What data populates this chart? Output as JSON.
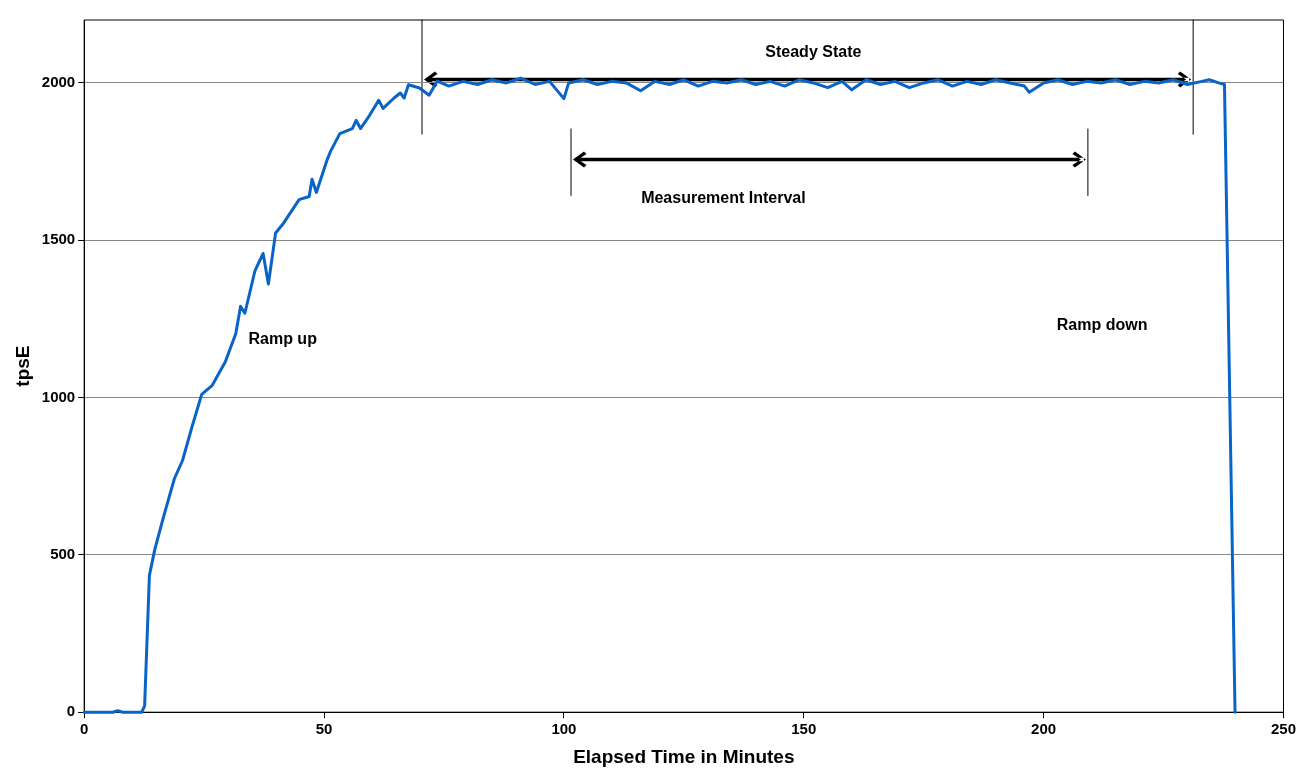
{
  "chart_data": {
    "type": "line",
    "xlabel": "Elapsed Time in Minutes",
    "ylabel": "tpsE",
    "series": [
      {
        "color": "#0a64c8",
        "x": [
          0,
          6,
          7,
          8,
          12,
          12.6,
          13.6,
          14.7,
          16.4,
          18.8,
          20.5,
          22.4,
          24.5,
          26.7,
          29.4,
          31.6,
          32.6,
          33.5,
          35.6,
          37.3,
          38.4,
          39.9,
          41.6,
          44.8,
          46.9,
          47.5,
          48.4,
          50.7,
          51.4,
          53.3,
          55.9,
          56.7,
          57.6,
          59.5,
          61.4,
          62.3,
          64.6,
          65.9,
          66.7,
          67.6,
          69.9,
          71.9,
          73.6,
          76,
          79,
          82,
          85,
          88,
          91,
          94,
          97,
          100,
          101,
          104,
          107,
          110,
          113,
          116,
          119,
          122,
          125,
          128,
          131,
          134,
          137,
          140,
          143,
          146,
          149,
          152,
          155,
          158,
          160,
          163,
          166,
          169,
          172,
          175,
          178,
          181,
          184,
          187,
          190,
          193,
          196,
          197,
          200,
          203,
          206,
          209,
          212,
          215,
          218,
          221,
          224,
          227,
          230,
          233,
          234.5,
          236.5,
          237.7,
          238.8,
          239.9
        ],
        "values": [
          0,
          0,
          5,
          0,
          0,
          20,
          435,
          516,
          613,
          742,
          800,
          903,
          1010,
          1039,
          1113,
          1203,
          1290,
          1268,
          1403,
          1458,
          1361,
          1523,
          1555,
          1629,
          1639,
          1694,
          1652,
          1758,
          1784,
          1839,
          1855,
          1881,
          1855,
          1897,
          1945,
          1919,
          1952,
          1968,
          1952,
          1994,
          1984,
          1961,
          2006,
          1990,
          2005,
          1995,
          2010,
          2000,
          2015,
          1995,
          2005,
          1950,
          2000,
          2010,
          1995,
          2005,
          2000,
          1975,
          2005,
          1995,
          2010,
          1990,
          2005,
          2000,
          2010,
          1995,
          2005,
          1990,
          2010,
          2000,
          1985,
          2005,
          1978,
          2010,
          1995,
          2005,
          1985,
          2000,
          2010,
          1990,
          2005,
          1995,
          2010,
          2000,
          1990,
          1970,
          2000,
          2010,
          1995,
          2005,
          2000,
          2010,
          1995,
          2005,
          2000,
          2010,
          1995,
          2005,
          2010,
          2000,
          1995,
          1000,
          0
        ]
      }
    ],
    "xlim": [
      0,
      250
    ],
    "xticks": [
      0,
      50,
      100,
      150,
      200,
      250
    ],
    "ylim": [
      0,
      2200
    ],
    "yticks": [
      0,
      500,
      1000,
      1500,
      2000
    ],
    "grid": "y",
    "legend": false,
    "marker": "none",
    "line_style": "solid",
    "annotations": [
      "Steady State",
      "Measurement Interval",
      "Ramp up",
      "Ramp down"
    ]
  }
}
